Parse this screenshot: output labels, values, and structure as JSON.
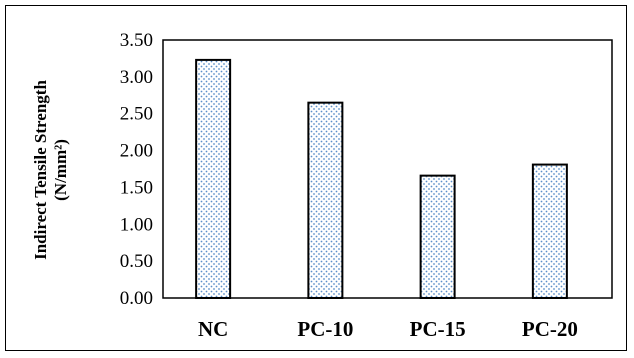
{
  "chart_data": {
    "type": "bar",
    "title": "",
    "xlabel": "",
    "ylabel_line1": "Indirect Tensile Strength",
    "ylabel_line2": "(N/mm²)",
    "categories": [
      "NC",
      "PC-10",
      "PC-15",
      "PC-20"
    ],
    "values": [
      3.23,
      2.65,
      1.66,
      1.81
    ],
    "ylim": [
      0,
      3.5
    ],
    "yticks": [
      "0.00",
      "0.50",
      "1.00",
      "1.50",
      "2.00",
      "2.50",
      "3.00",
      "3.50"
    ],
    "grid": false,
    "legend": "none",
    "bar_pattern": "dotted",
    "bar_dot_color": "#5b8fc9",
    "bar_stroke_color": "#000000"
  }
}
